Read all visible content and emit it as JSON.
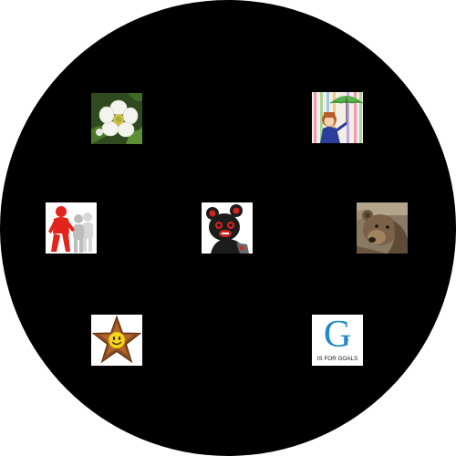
{
  "tiles": [
    {
      "id": "flower",
      "icon": "white-flower-icon"
    },
    {
      "id": "girl",
      "icon": "girl-umbrella-icon"
    },
    {
      "id": "people",
      "icon": "people-group-icon"
    },
    {
      "id": "bear",
      "icon": "cartoon-bear-icon"
    },
    {
      "id": "grizzly",
      "icon": "grizzly-bear-icon"
    },
    {
      "id": "star",
      "icon": "smiley-star-icon"
    },
    {
      "id": "goals",
      "icon": "g-for-goals-icon"
    }
  ],
  "goals_tile": {
    "letter": "G",
    "caption": "IS FOR GOALS"
  },
  "colors": {
    "background_disc": "#000000",
    "goals_blue": "#1e88c9"
  }
}
